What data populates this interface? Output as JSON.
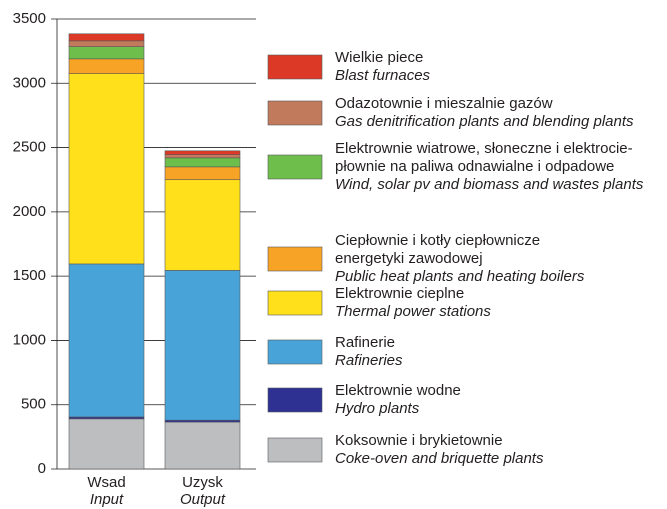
{
  "chart_data": {
    "type": "stacked_bar",
    "categories": [
      "Wsad",
      "Uzysk"
    ],
    "categories_en": [
      "Input",
      "Output"
    ],
    "ylim": [
      0,
      3500
    ],
    "yticks": [
      0,
      500,
      1000,
      1500,
      2000,
      2500,
      3000,
      3500
    ],
    "grid": true,
    "series": [
      {
        "name": [
          "Koksownie i brykietownie"
        ],
        "name_en": "Coke-oven and briquette plants",
        "color": "#bcbec0",
        "values": [
          390,
          365
        ]
      },
      {
        "name": [
          "Elektrownie wodne"
        ],
        "name_en": "Hydro plants",
        "color": "#2e3192",
        "values": [
          15,
          15
        ]
      },
      {
        "name": [
          "Rafinerie"
        ],
        "name_en": "Rafineries",
        "color": "#48a4d8",
        "values": [
          1190,
          1165
        ]
      },
      {
        "name": [
          "Elektrownie cieplne"
        ],
        "name_en": "Thermal power stations",
        "color": "#ffe01a",
        "values": [
          1480,
          705
        ]
      },
      {
        "name": [
          "Ciepłownie i kotły ciepłownicze",
          "energetyki zawodowej"
        ],
        "name_en": "Public heat plants and heating boilers",
        "color": "#f7a325",
        "values": [
          115,
          100
        ]
      },
      {
        "name": [
          "Elektrownie wiatrowe, słoneczne i elektrocie-",
          "płownie na paliwa odnawialne i odpadowe"
        ],
        "name_en": "Wind, solar pv and biomass and wastes plants",
        "color": "#6dbe4b",
        "values": [
          95,
          70
        ]
      },
      {
        "name": [
          "Odazotownie i mieszalnie gazów"
        ],
        "name_en": "Gas denitrification plants and blending plants",
        "color": "#c17a5c",
        "values": [
          45,
          25
        ]
      },
      {
        "name": [
          "Wielkie piece"
        ],
        "name_en": "Blast furnaces",
        "color": "#dc3a26",
        "values": [
          55,
          30
        ]
      }
    ]
  }
}
